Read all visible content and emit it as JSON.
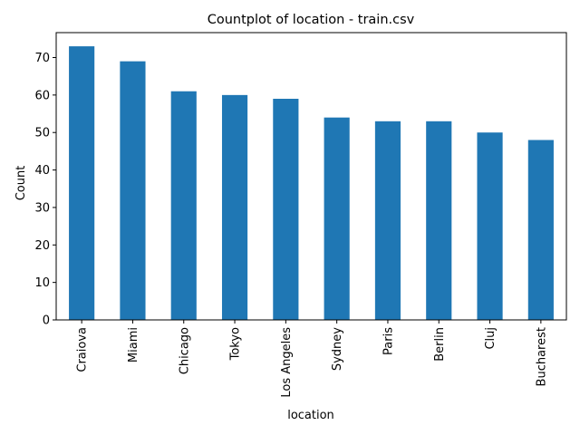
{
  "chart_data": {
    "type": "bar",
    "title": "Countplot of location - train.csv",
    "xlabel": "location",
    "ylabel": "Count",
    "categories": [
      "Craiova",
      "Miami",
      "Chicago",
      "Tokyo",
      "Los Angeles",
      "Sydney",
      "Paris",
      "Berlin",
      "Cluj",
      "Bucharest"
    ],
    "values": [
      73,
      69,
      61,
      60,
      59,
      54,
      53,
      53,
      50,
      48
    ],
    "ylim": [
      0,
      76.65
    ],
    "yticks": [
      0,
      10,
      20,
      30,
      40,
      50,
      60,
      70
    ],
    "grid": false,
    "legend": "none",
    "bar_color": "#1f77b4",
    "x_tick_rotation": "vertical"
  }
}
